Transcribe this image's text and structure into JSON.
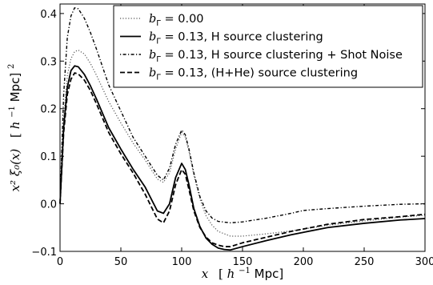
{
  "chart_data": {
    "type": "line",
    "xlabel": {
      "var": "x",
      "unit_open": "[",
      "unit_h": "h",
      "unit_exp": "−1",
      "unit_rest": "Mpc]"
    },
    "ylabel": {
      "math": "x² ξ₀(x)",
      "unit_open": "[",
      "unit_h": "h",
      "unit_exp": "−1",
      "unit_rest": "Mpc]",
      "unit_power": "2"
    },
    "xlim": [
      0,
      300
    ],
    "ylim": [
      -0.1,
      0.42
    ],
    "x_ticks": [
      0,
      50,
      100,
      150,
      200,
      250,
      300
    ],
    "x_tick_labels": [
      "0",
      "50",
      "100",
      "150",
      "200",
      "250",
      "300"
    ],
    "y_ticks": [
      -0.1,
      0.0,
      0.1,
      0.2,
      0.3,
      0.4
    ],
    "y_tick_labels": [
      "−0.1",
      "0.0",
      "0.1",
      "0.2",
      "0.3",
      "0.4"
    ],
    "grid": false,
    "legend_position": "top-right",
    "series": [
      {
        "legend_var": "b",
        "legend_sub": "Γ",
        "legend_rest": " = 0.00",
        "style": "dotted",
        "color": "#555555",
        "x": [
          0,
          3,
          6,
          9,
          12,
          15,
          20,
          25,
          30,
          40,
          50,
          60,
          70,
          80,
          85,
          90,
          95,
          100,
          103,
          106,
          110,
          115,
          120,
          125,
          130,
          140,
          150,
          170,
          190,
          200,
          220,
          250,
          280,
          300
        ],
        "y": [
          0,
          0.18,
          0.27,
          0.305,
          0.32,
          0.323,
          0.315,
          0.295,
          0.27,
          0.215,
          0.17,
          0.128,
          0.092,
          0.052,
          0.045,
          0.065,
          0.115,
          0.15,
          0.14,
          0.11,
          0.06,
          0.01,
          -0.025,
          -0.045,
          -0.058,
          -0.068,
          -0.068,
          -0.063,
          -0.057,
          -0.053,
          -0.045,
          -0.036,
          -0.028,
          -0.024
        ]
      },
      {
        "legend_var": "b",
        "legend_sub": "Γ",
        "legend_rest": " = 0.13, H source clustering",
        "style": "solid",
        "color": "#000000",
        "x": [
          0,
          3,
          6,
          9,
          12,
          15,
          20,
          25,
          30,
          40,
          50,
          60,
          70,
          80,
          85,
          90,
          95,
          100,
          103,
          106,
          110,
          115,
          120,
          125,
          130,
          135,
          140,
          150,
          170,
          190,
          200,
          220,
          250,
          280,
          300
        ],
        "y": [
          0,
          0.16,
          0.245,
          0.28,
          0.29,
          0.288,
          0.272,
          0.248,
          0.22,
          0.16,
          0.115,
          0.073,
          0.035,
          -0.015,
          -0.02,
          0.0,
          0.055,
          0.085,
          0.072,
          0.04,
          -0.01,
          -0.048,
          -0.072,
          -0.085,
          -0.093,
          -0.096,
          -0.097,
          -0.09,
          -0.077,
          -0.065,
          -0.06,
          -0.05,
          -0.041,
          -0.034,
          -0.031
        ]
      },
      {
        "legend_var": "b",
        "legend_sub": "Γ",
        "legend_rest": " = 0.13, H source clustering + Shot Noise",
        "style": "dashdot",
        "color": "#000000",
        "x": [
          0,
          3,
          6,
          9,
          12,
          15,
          20,
          25,
          30,
          40,
          50,
          60,
          70,
          80,
          85,
          90,
          95,
          100,
          103,
          106,
          110,
          115,
          120,
          125,
          130,
          140,
          150,
          170,
          190,
          200,
          220,
          250,
          280,
          300
        ],
        "y": [
          0,
          0.23,
          0.35,
          0.395,
          0.412,
          0.41,
          0.39,
          0.36,
          0.325,
          0.25,
          0.195,
          0.14,
          0.1,
          0.06,
          0.05,
          0.075,
          0.125,
          0.155,
          0.145,
          0.115,
          0.065,
          0.015,
          -0.015,
          -0.03,
          -0.037,
          -0.04,
          -0.038,
          -0.03,
          -0.02,
          -0.014,
          -0.01,
          -0.005,
          -0.001,
          0.0
        ]
      },
      {
        "legend_var": "b",
        "legend_sub": "Γ",
        "legend_rest": " = 0.13, (H+He) source clustering",
        "style": "dashed",
        "color": "#000000",
        "x": [
          0,
          3,
          6,
          9,
          12,
          15,
          20,
          25,
          30,
          40,
          50,
          60,
          70,
          80,
          85,
          90,
          95,
          100,
          103,
          106,
          110,
          115,
          120,
          125,
          130,
          135,
          140,
          150,
          170,
          190,
          200,
          220,
          250,
          280,
          300
        ],
        "y": [
          0,
          0.15,
          0.23,
          0.262,
          0.275,
          0.273,
          0.26,
          0.238,
          0.21,
          0.15,
          0.105,
          0.065,
          0.02,
          -0.032,
          -0.04,
          -0.015,
          0.04,
          0.072,
          0.062,
          0.03,
          -0.015,
          -0.05,
          -0.07,
          -0.082,
          -0.087,
          -0.09,
          -0.09,
          -0.082,
          -0.07,
          -0.058,
          -0.053,
          -0.043,
          -0.033,
          -0.027,
          -0.022
        ]
      }
    ]
  }
}
